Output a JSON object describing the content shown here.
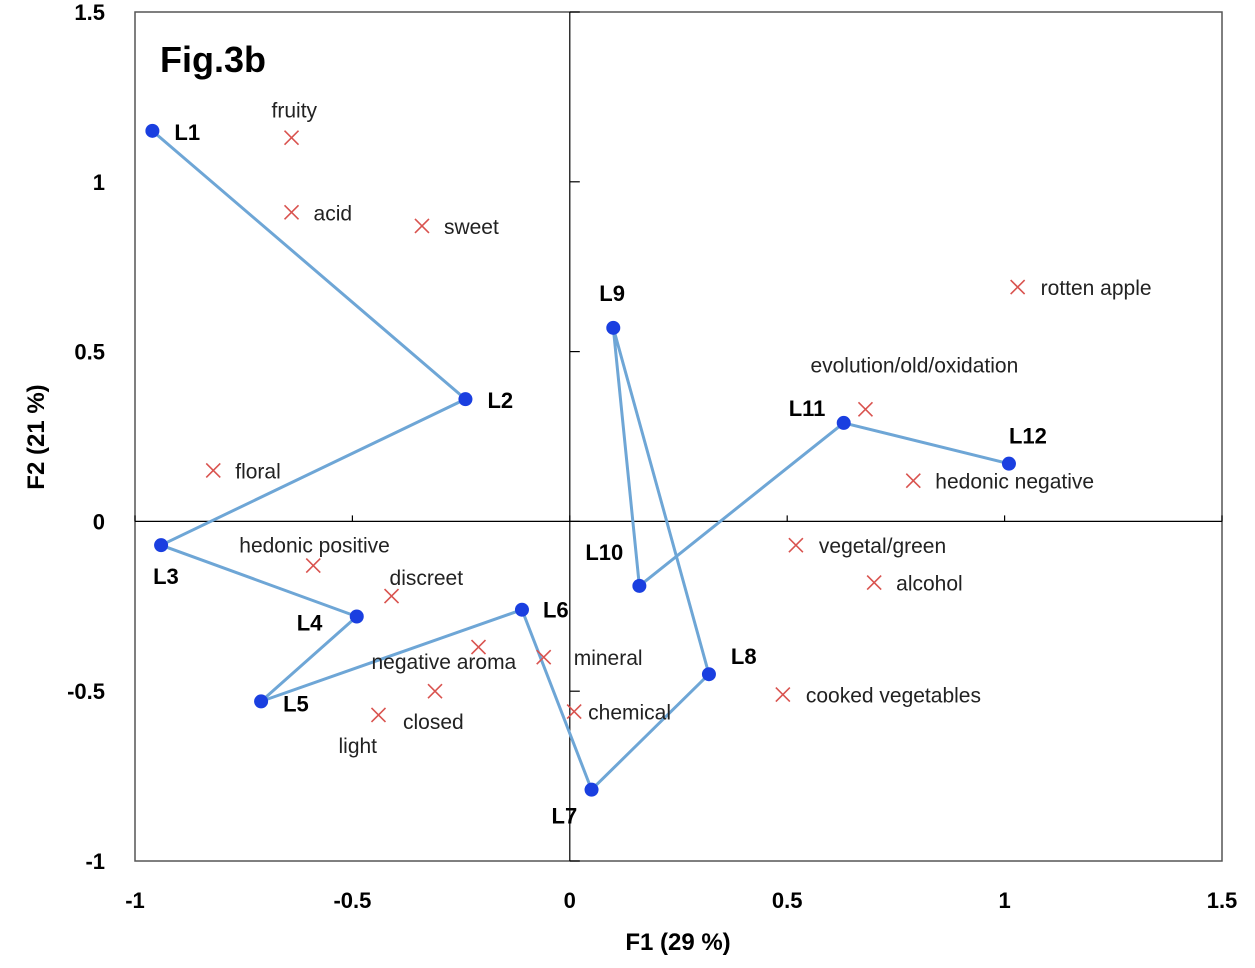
{
  "chart_data": {
    "type": "scatter",
    "title": "Fig.3b",
    "xlabel": "F1 (29 %)",
    "ylabel": "F2 (21 %)",
    "xlim": [
      -1,
      1.5
    ],
    "ylim": [
      -1,
      1.5
    ],
    "x_ticks": [
      "-1",
      "-0.5",
      "0",
      "0.5",
      "1",
      "1.5"
    ],
    "y_ticks": [
      "-1",
      "-0.5",
      "0",
      "0.5",
      "1",
      "1.5"
    ],
    "grid": false,
    "colors": {
      "samples": "#1a3fe0",
      "path": "#6ea6d6",
      "attributes": "#d9534f",
      "axes": "#000000"
    },
    "series": [
      {
        "name": "samples",
        "marker": "circle",
        "points": [
          {
            "label": "L1",
            "x": -0.96,
            "y": 1.15
          },
          {
            "label": "L2",
            "x": -0.24,
            "y": 0.36
          },
          {
            "label": "L3",
            "x": -0.94,
            "y": -0.07
          },
          {
            "label": "L4",
            "x": -0.49,
            "y": -0.28
          },
          {
            "label": "L5",
            "x": -0.71,
            "y": -0.53
          },
          {
            "label": "L6",
            "x": -0.11,
            "y": -0.26
          },
          {
            "label": "L7",
            "x": 0.05,
            "y": -0.79
          },
          {
            "label": "L8",
            "x": 0.32,
            "y": -0.45
          },
          {
            "label": "L9",
            "x": 0.1,
            "y": 0.57
          },
          {
            "label": "L10",
            "x": 0.16,
            "y": -0.19
          },
          {
            "label": "L11",
            "x": 0.63,
            "y": 0.29
          },
          {
            "label": "L12",
            "x": 1.01,
            "y": 0.17
          }
        ],
        "path_order": [
          "L1",
          "L2",
          "L3",
          "L4",
          "L5",
          "L6",
          "L7",
          "L8",
          "L9",
          "L10",
          "L11",
          "L12"
        ]
      },
      {
        "name": "attributes",
        "marker": "x",
        "points": [
          {
            "label": "fruity",
            "x": -0.64,
            "y": 1.13
          },
          {
            "label": "acid",
            "x": -0.64,
            "y": 0.91
          },
          {
            "label": "sweet",
            "x": -0.34,
            "y": 0.87
          },
          {
            "label": "floral",
            "x": -0.82,
            "y": 0.15
          },
          {
            "label": "hedonic positive",
            "x": -0.59,
            "y": -0.13
          },
          {
            "label": "discreet",
            "x": -0.41,
            "y": -0.22
          },
          {
            "label": "negative aroma",
            "x": -0.21,
            "y": -0.37
          },
          {
            "label": "mineral",
            "x": -0.06,
            "y": -0.4
          },
          {
            "label": "closed",
            "x": -0.31,
            "y": -0.5
          },
          {
            "label": "light",
            "x": -0.44,
            "y": -0.57
          },
          {
            "label": "chemical",
            "x": 0.01,
            "y": -0.56
          },
          {
            "label": "rotten apple",
            "x": 1.03,
            "y": 0.69
          },
          {
            "label": "evolution/old/oxidation",
            "x": 0.68,
            "y": 0.33
          },
          {
            "label": "hedonic negative",
            "x": 0.79,
            "y": 0.12
          },
          {
            "label": "vegetal/green",
            "x": 0.52,
            "y": -0.07
          },
          {
            "label": "alcohol",
            "x": 0.7,
            "y": -0.18
          },
          {
            "label": "cooked vegetables",
            "x": 0.49,
            "y": -0.51
          }
        ]
      }
    ]
  }
}
